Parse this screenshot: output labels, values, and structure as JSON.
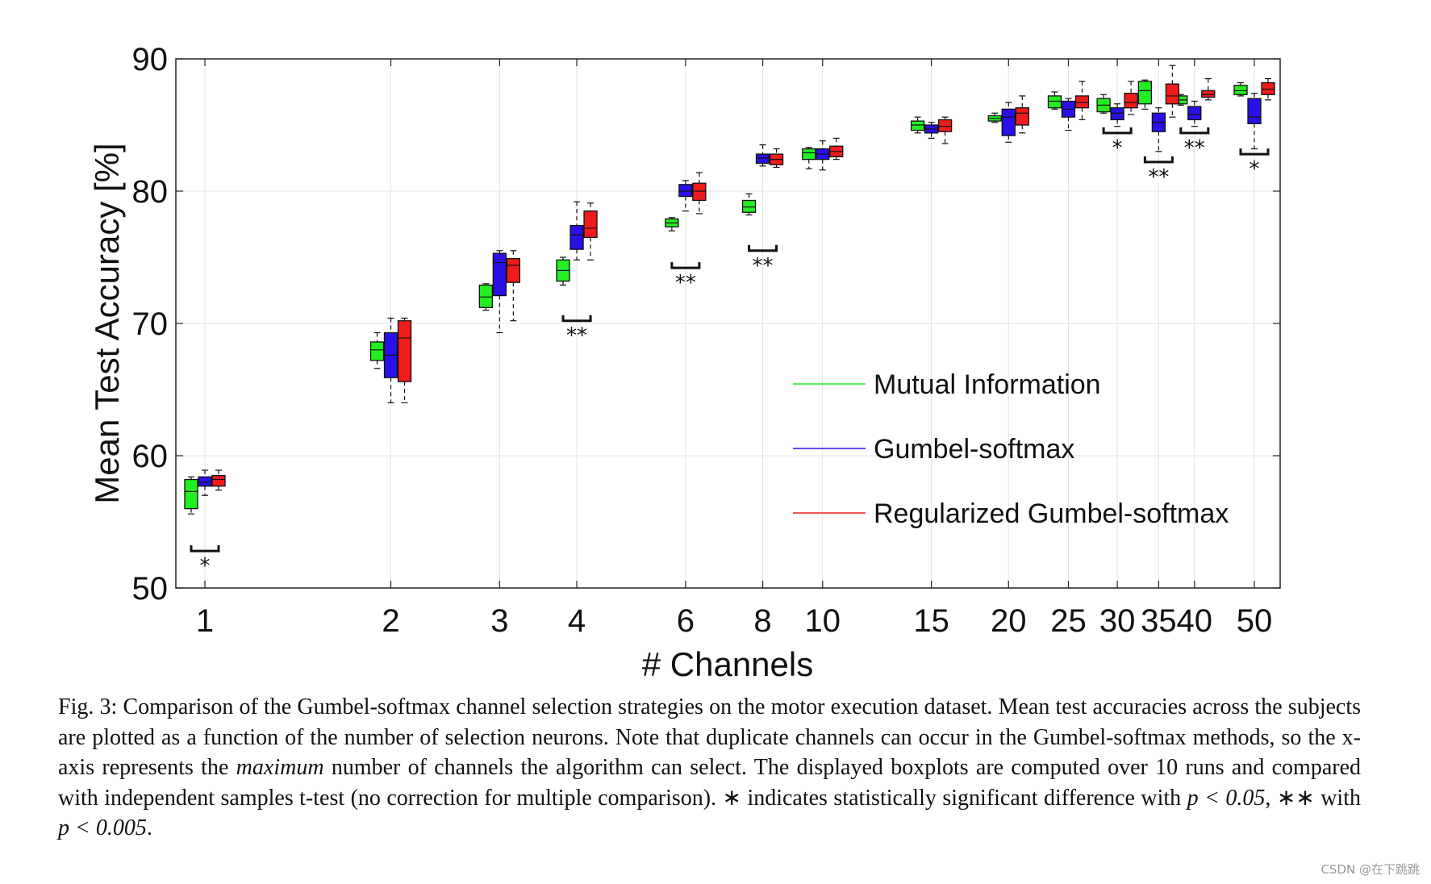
{
  "chart_data": {
    "type": "boxplot",
    "xlabel": "# Channels",
    "ylabel": "Mean Test Accuracy [%]",
    "ylim": [
      50,
      90
    ],
    "yticks": [
      50,
      60,
      70,
      80,
      90
    ],
    "x_scale": "log",
    "categories": [
      "1",
      "2",
      "3",
      "4",
      "6",
      "8",
      "10",
      "15",
      "20",
      "25",
      "30",
      "35",
      "40",
      "50"
    ],
    "grid": true,
    "legend_position": "lower-right",
    "colors": {
      "Mutual Information": "#22ee22",
      "Gumbel-softmax": "#2a10e8",
      "Regularized Gumbel-softmax": "#ee1c1c"
    },
    "series": [
      {
        "name": "Mutual Information",
        "boxes": [
          {
            "min": 55.6,
            "q1": 56.0,
            "median": 57.3,
            "q3": 58.2,
            "max": 58.4
          },
          {
            "min": 66.6,
            "q1": 67.2,
            "median": 68.0,
            "q3": 68.6,
            "max": 69.3
          },
          {
            "min": 71.0,
            "q1": 71.2,
            "median": 72.0,
            "q3": 72.9,
            "max": 73.0
          },
          {
            "min": 72.9,
            "q1": 73.2,
            "median": 74.0,
            "q3": 74.8,
            "max": 75.0
          },
          {
            "min": 77.0,
            "q1": 77.3,
            "median": 77.6,
            "q3": 77.9,
            "max": 78.0
          },
          {
            "min": 78.2,
            "q1": 78.4,
            "median": 78.8,
            "q3": 79.3,
            "max": 79.8
          },
          {
            "min": 81.7,
            "q1": 82.4,
            "median": 82.9,
            "q3": 83.2,
            "max": 83.3
          },
          {
            "min": 84.4,
            "q1": 84.6,
            "median": 85.0,
            "q3": 85.3,
            "max": 85.6
          },
          {
            "min": 85.2,
            "q1": 85.3,
            "median": 85.5,
            "q3": 85.7,
            "max": 85.9
          },
          {
            "min": 86.2,
            "q1": 86.3,
            "median": 86.8,
            "q3": 87.2,
            "max": 87.5
          },
          {
            "min": 85.9,
            "q1": 86.0,
            "median": 86.5,
            "q3": 87.0,
            "max": 87.3
          },
          {
            "min": 86.2,
            "q1": 86.6,
            "median": 87.6,
            "q3": 88.3,
            "max": 88.4
          },
          {
            "min": 86.5,
            "q1": 86.6,
            "median": 86.9,
            "q3": 87.2,
            "max": 87.3
          },
          {
            "min": 87.2,
            "q1": 87.3,
            "median": 87.6,
            "q3": 88.0,
            "max": 88.2
          }
        ]
      },
      {
        "name": "Gumbel-softmax",
        "boxes": [
          {
            "min": 57.0,
            "q1": 57.7,
            "median": 58.0,
            "q3": 58.4,
            "max": 58.9
          },
          {
            "min": 64.0,
            "q1": 65.9,
            "median": 67.6,
            "q3": 69.3,
            "max": 70.4
          },
          {
            "min": 69.3,
            "q1": 72.1,
            "median": 74.6,
            "q3": 75.3,
            "max": 75.5
          },
          {
            "min": 74.8,
            "q1": 75.6,
            "median": 76.7,
            "q3": 77.4,
            "max": 79.2
          },
          {
            "min": 78.5,
            "q1": 79.6,
            "median": 80.0,
            "q3": 80.5,
            "max": 80.8
          },
          {
            "min": 81.9,
            "q1": 82.1,
            "median": 82.5,
            "q3": 82.8,
            "max": 83.5
          },
          {
            "min": 81.6,
            "q1": 82.4,
            "median": 82.8,
            "q3": 83.2,
            "max": 83.8
          },
          {
            "min": 84.0,
            "q1": 84.4,
            "median": 84.7,
            "q3": 85.0,
            "max": 85.2
          },
          {
            "min": 83.7,
            "q1": 84.2,
            "median": 85.6,
            "q3": 86.2,
            "max": 86.7
          },
          {
            "min": 84.6,
            "q1": 85.6,
            "median": 86.2,
            "q3": 86.8,
            "max": 87.0
          },
          {
            "min": 84.9,
            "q1": 85.4,
            "median": 85.9,
            "q3": 86.3,
            "max": 86.6
          },
          {
            "min": 83.0,
            "q1": 84.5,
            "median": 85.2,
            "q3": 85.9,
            "max": 86.3
          },
          {
            "min": 84.9,
            "q1": 85.4,
            "median": 85.8,
            "q3": 86.4,
            "max": 86.8
          },
          {
            "min": 83.2,
            "q1": 85.1,
            "median": 85.6,
            "q3": 87.0,
            "max": 87.4
          }
        ]
      },
      {
        "name": "Regularized Gumbel-softmax",
        "boxes": [
          {
            "min": 57.4,
            "q1": 57.7,
            "median": 58.2,
            "q3": 58.5,
            "max": 58.9
          },
          {
            "min": 64.0,
            "q1": 65.6,
            "median": 68.9,
            "q3": 70.2,
            "max": 70.4
          },
          {
            "min": 70.2,
            "q1": 73.1,
            "median": 74.4,
            "q3": 74.9,
            "max": 75.5
          },
          {
            "min": 74.8,
            "q1": 76.5,
            "median": 77.2,
            "q3": 78.5,
            "max": 79.1
          },
          {
            "min": 78.3,
            "q1": 79.3,
            "median": 80.0,
            "q3": 80.6,
            "max": 81.4
          },
          {
            "min": 81.8,
            "q1": 82.0,
            "median": 82.4,
            "q3": 82.8,
            "max": 83.2
          },
          {
            "min": 82.4,
            "q1": 82.6,
            "median": 83.0,
            "q3": 83.4,
            "max": 84.0
          },
          {
            "min": 83.6,
            "q1": 84.5,
            "median": 84.9,
            "q3": 85.4,
            "max": 85.6
          },
          {
            "min": 84.4,
            "q1": 85.0,
            "median": 85.9,
            "q3": 86.3,
            "max": 87.2
          },
          {
            "min": 85.4,
            "q1": 86.3,
            "median": 86.7,
            "q3": 87.2,
            "max": 88.3
          },
          {
            "min": 85.8,
            "q1": 86.3,
            "median": 86.7,
            "q3": 87.4,
            "max": 88.3
          },
          {
            "min": 85.6,
            "q1": 86.6,
            "median": 87.2,
            "q3": 88.1,
            "max": 89.5
          },
          {
            "min": 86.9,
            "q1": 87.1,
            "median": 87.3,
            "q3": 87.6,
            "max": 88.5
          },
          {
            "min": 86.9,
            "q1": 87.3,
            "median": 87.7,
            "q3": 88.2,
            "max": 88.5
          }
        ]
      }
    ],
    "significance": [
      {
        "category": "1",
        "stars": "*",
        "y": 52.8
      },
      {
        "category": "4",
        "stars": "**",
        "y": 70.2
      },
      {
        "category": "6",
        "stars": "**",
        "y": 74.2
      },
      {
        "category": "8",
        "stars": "**",
        "y": 75.5
      },
      {
        "category": "30",
        "stars": "*",
        "y": 84.4
      },
      {
        "category": "35",
        "stars": "**",
        "y": 82.2
      },
      {
        "category": "40",
        "stars": "**",
        "y": 84.4
      },
      {
        "category": "50",
        "stars": "*",
        "y": 82.8
      }
    ]
  },
  "caption": {
    "part1": "Fig. 3: Comparison of the Gumbel-softmax channel selection strategies on the motor execution dataset. Mean test accuracies across the subjects are plotted as a function of the number of selection neurons. Note that duplicate channels can occur in the Gumbel-softmax methods, so the x-axis represents the ",
    "emphasis": "maximum",
    "part2": " number of channels the algorithm can select. The displayed boxplots are computed over 10 runs and compared with independent samples t-test (no correction for multiple comparison). ∗ indicates statistically significant difference with ",
    "math1": "p < 0.05",
    "part3": ", ∗∗ with ",
    "math2": "p < 0.005",
    "part4": "."
  },
  "watermark": "CSDN @在下跳跳"
}
